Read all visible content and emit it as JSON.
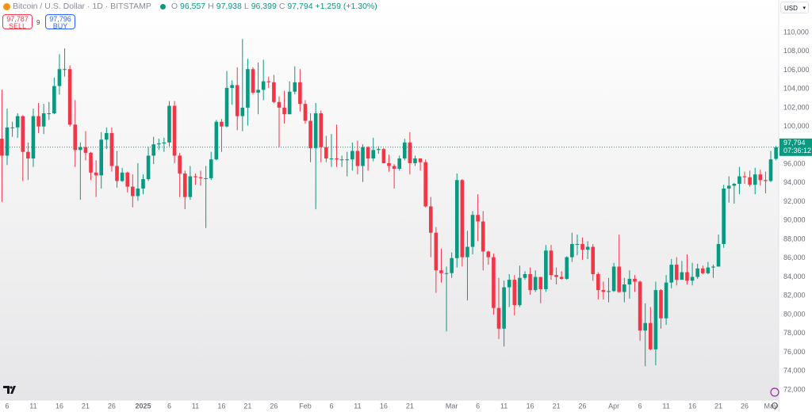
{
  "header": {
    "symbol": "Bitcoin / U.S. Dollar · 1D · BITSTAMP",
    "ohlc_labels": [
      "O",
      "H",
      "L",
      "C"
    ],
    "ohlc_values": [
      "96,557",
      "97,938",
      "96,399",
      "97,794"
    ],
    "change": "+1,259 (+1.30%)"
  },
  "trade": {
    "sell_price": "97,787",
    "sell_label": "SELL",
    "spread": "9",
    "buy_price": "97,796",
    "buy_label": "BUY"
  },
  "currency": "USD",
  "chart_data": {
    "type": "candlestick",
    "up_color": "#089981",
    "down_color": "#f23645",
    "grid": false,
    "last_price_label": "97,794",
    "countdown": "07:36:12",
    "ylim": [
      70900,
      113450
    ],
    "yticks": [
      {
        "value": 72000,
        "label": "72,000"
      },
      {
        "value": 74000,
        "label": "74,000"
      },
      {
        "value": 76000,
        "label": "76,000"
      },
      {
        "value": 78000,
        "label": "78,000"
      },
      {
        "value": 80000,
        "label": "80,000"
      },
      {
        "value": 82000,
        "label": "82,000"
      },
      {
        "value": 84000,
        "label": "84,000"
      },
      {
        "value": 86000,
        "label": "86,000"
      },
      {
        "value": 88000,
        "label": "88,000"
      },
      {
        "value": 90000,
        "label": "90,000"
      },
      {
        "value": 92000,
        "label": "92,000"
      },
      {
        "value": 94000,
        "label": "94,000"
      },
      {
        "value": 96000,
        "label": "96,000"
      },
      {
        "value": 98000,
        "label": "98,000"
      },
      {
        "value": 100000,
        "label": "100,000"
      },
      {
        "value": 102000,
        "label": "102,000"
      },
      {
        "value": 104000,
        "label": "104,000"
      },
      {
        "value": 106000,
        "label": "106,000"
      },
      {
        "value": 108000,
        "label": "108,000"
      },
      {
        "value": 110000,
        "label": "110,000"
      }
    ],
    "categories": [
      null,
      "6",
      null,
      null,
      null,
      null,
      "11",
      null,
      null,
      null,
      null,
      "16",
      null,
      null,
      null,
      null,
      "21",
      null,
      null,
      null,
      null,
      "26",
      null,
      null,
      null,
      null,
      null,
      "2025",
      null,
      null,
      null,
      null,
      "6",
      null,
      null,
      null,
      null,
      "11",
      null,
      null,
      null,
      null,
      "16",
      null,
      null,
      null,
      null,
      "21",
      null,
      null,
      null,
      null,
      "26",
      null,
      null,
      null,
      null,
      null,
      "Feb",
      null,
      null,
      null,
      null,
      "6",
      null,
      null,
      null,
      null,
      "11",
      null,
      null,
      null,
      null,
      "16",
      null,
      null,
      null,
      null,
      "21",
      null,
      null,
      null,
      null,
      null,
      null,
      null,
      "Mar",
      null,
      null,
      null,
      null,
      "6",
      null,
      null,
      null,
      null,
      "11",
      null,
      null,
      null,
      null,
      "16",
      null,
      null,
      null,
      null,
      "21",
      null,
      null,
      null,
      null,
      "26",
      null,
      null,
      null,
      null,
      null,
      "Apr",
      null,
      null,
      null,
      null,
      "6",
      null,
      null,
      null,
      null,
      "11",
      null,
      null,
      null,
      null,
      "16",
      null,
      null,
      null,
      null,
      "21",
      null,
      null,
      null,
      null,
      "26",
      null,
      null,
      null,
      null,
      "May",
      null
    ],
    "open": [
      98700,
      96900,
      99900,
      99900,
      101100,
      97300,
      96600,
      101100,
      100000,
      101400,
      101400,
      104300,
      106100,
      106100,
      100200,
      97500,
      97800,
      97200,
      95100,
      94800,
      98600,
      99300,
      95800,
      94200,
      95100,
      93600,
      92600,
      93400,
      94400,
      96900,
      98100,
      98200,
      98300,
      102200,
      96900,
      95000,
      92500,
      94700,
      94600,
      94500,
      94500,
      96500,
      100500,
      100000,
      104100,
      104400,
      101100,
      102000,
      106100,
      103600,
      103900,
      104800,
      104700,
      102600,
      102000,
      101300,
      103700,
      104700,
      102400,
      100600,
      97700,
      101400,
      97800,
      96600,
      96600,
      96500,
      96500,
      96500,
      97400,
      95800,
      97800,
      96600,
      97500,
      97600,
      96100,
      95800,
      95500,
      96600,
      98300,
      96100,
      96600,
      96200,
      91500,
      88700,
      84700,
      84400,
      84400,
      86000,
      94300,
      86100,
      87200,
      90600,
      89900,
      86700,
      86100,
      80700,
      78500,
      82900,
      83700,
      81000,
      83900,
      84300,
      82600,
      84000,
      82700,
      86800,
      84200,
      84000,
      83800,
      86100,
      87500,
      87500,
      86900,
      87200,
      84300,
      82600,
      82400,
      82500,
      85100,
      82400,
      83200,
      83800,
      83500,
      78300,
      79100,
      76300,
      82600,
      79600,
      83400,
      85300,
      83700,
      84500,
      83600,
      84000,
      84900,
      84400,
      85000,
      85100,
      87500,
      93400,
      93700,
      93900,
      94700,
      94600,
      93800,
      94900,
      94300,
      94200,
      96557
    ],
    "high": [
      103900,
      101900,
      100500,
      101400,
      101200,
      98300,
      101900,
      102500,
      102400,
      102600,
      105200,
      107700,
      108300,
      106500,
      102800,
      98300,
      99500,
      97300,
      96400,
      99400,
      99900,
      99900,
      97400,
      95600,
      95200,
      94900,
      96100,
      94900,
      97800,
      98900,
      98700,
      98800,
      102700,
      102700,
      97200,
      95300,
      95800,
      95000,
      95300,
      95800,
      97300,
      100700,
      100800,
      105900,
      104900,
      106300,
      109300,
      107200,
      106300,
      106800,
      107100,
      105300,
      105500,
      103200,
      103800,
      104800,
      106400,
      106100,
      102800,
      101400,
      102500,
      101700,
      99000,
      99200,
      100200,
      96900,
      97300,
      98300,
      98500,
      98100,
      97900,
      98800,
      97900,
      97700,
      97000,
      96000,
      96900,
      98700,
      99400,
      96900,
      96600,
      96500,
      92500,
      89300,
      87000,
      85100,
      86600,
      95000,
      94400,
      88900,
      91000,
      92800,
      91000,
      86800,
      86500,
      83900,
      83600,
      84300,
      84200,
      85200,
      84600,
      85000,
      84700,
      84000,
      87400,
      87400,
      85000,
      84600,
      86200,
      88700,
      88500,
      88200,
      87800,
      87500,
      84500,
      83500,
      83900,
      85500,
      88500,
      83900,
      84700,
      84200,
      83600,
      81200,
      80800,
      83500,
      82700,
      84200,
      85900,
      86100,
      85700,
      86400,
      85500,
      85400,
      85200,
      85600,
      85300,
      88500,
      93800,
      94700,
      94000,
      95700,
      95200,
      95300,
      95600,
      95400,
      95200,
      97400,
      97938
    ],
    "low": [
      92000,
      95900,
      98900,
      98800,
      94200,
      94300,
      95700,
      99300,
      99200,
      100700,
      101300,
      103400,
      105300,
      100000,
      95700,
      92200,
      96400,
      94300,
      92500,
      93400,
      97600,
      95200,
      93500,
      94100,
      93000,
      91400,
      92100,
      92800,
      94200,
      96000,
      97500,
      97300,
      97900,
      96100,
      92500,
      91200,
      92200,
      93800,
      93700,
      89200,
      94300,
      96400,
      97300,
      99900,
      102300,
      99600,
      99500,
      100100,
      103400,
      101300,
      102800,
      104100,
      102500,
      97800,
      100300,
      101300,
      103400,
      101600,
      100300,
      96200,
      91200,
      96200,
      96200,
      95700,
      95700,
      95700,
      94700,
      95300,
      94900,
      94100,
      95300,
      96300,
      97100,
      96100,
      95200,
      93400,
      95300,
      96400,
      94900,
      95800,
      95300,
      91400,
      86100,
      82300,
      83400,
      78200,
      83900,
      85000,
      85100,
      81500,
      86400,
      87800,
      84700,
      85300,
      80000,
      77400,
      76600,
      80800,
      79900,
      80800,
      83700,
      82100,
      82400,
      81200,
      82400,
      83700,
      83200,
      83700,
      83700,
      85600,
      86300,
      85800,
      85900,
      83600,
      81600,
      81600,
      81300,
      82400,
      82300,
      81300,
      81700,
      82400,
      77200,
      74500,
      76200,
      74600,
      78500,
      78900,
      82800,
      83100,
      83700,
      83200,
      83100,
      83800,
      84300,
      84300,
      83900,
      85100,
      87100,
      91900,
      91800,
      92800,
      93900,
      93600,
      92800,
      93700,
      92900,
      94100,
      96399
    ],
    "close": [
      96900,
      99900,
      99900,
      101100,
      97300,
      96600,
      101100,
      100000,
      101400,
      101400,
      104300,
      106100,
      106100,
      100200,
      97500,
      97800,
      97200,
      95100,
      94800,
      98600,
      99300,
      95800,
      94200,
      95100,
      93600,
      92600,
      93400,
      94400,
      96900,
      98100,
      98200,
      98300,
      102200,
      96900,
      95000,
      92500,
      94700,
      94600,
      94500,
      94500,
      96500,
      100500,
      100000,
      104100,
      104400,
      101100,
      102000,
      106100,
      103600,
      103900,
      104800,
      104700,
      102600,
      102000,
      101300,
      103700,
      104700,
      102400,
      100600,
      97700,
      101400,
      97800,
      96600,
      96600,
      96500,
      96500,
      96500,
      97400,
      95800,
      97800,
      96600,
      97500,
      97600,
      96100,
      95800,
      95500,
      96600,
      98300,
      96100,
      96600,
      96200,
      91500,
      88700,
      84700,
      84400,
      84400,
      86000,
      94300,
      86100,
      87200,
      90600,
      89900,
      86700,
      86100,
      80700,
      78500,
      82900,
      83700,
      81000,
      83900,
      84300,
      82600,
      84000,
      82700,
      86800,
      84200,
      84000,
      83800,
      86100,
      87500,
      87500,
      86900,
      87200,
      84300,
      82600,
      82400,
      82500,
      85100,
      82400,
      83200,
      83800,
      83500,
      78300,
      79100,
      76300,
      82600,
      79600,
      83400,
      85300,
      83700,
      84500,
      83600,
      84000,
      84900,
      84400,
      85000,
      85100,
      87500,
      93400,
      93700,
      93900,
      94700,
      94600,
      93800,
      94900,
      94300,
      94200,
      96500,
      97794
    ]
  }
}
